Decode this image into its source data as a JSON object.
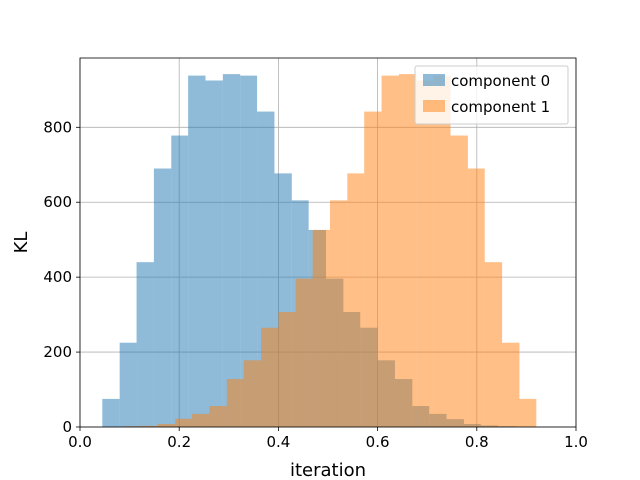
{
  "chart_data": {
    "type": "histogram",
    "title": "",
    "xlabel": "iteration",
    "ylabel": "KL",
    "xlim": [
      0.0,
      1.0
    ],
    "ylim": [
      0,
      985
    ],
    "grid": true,
    "legend_position": "top-right",
    "x_ticks": [
      0.0,
      0.2,
      0.4,
      0.6,
      0.8,
      1.0
    ],
    "x_tick_labels": [
      "0.0",
      "0.2",
      "0.4",
      "0.6",
      "0.8",
      "1.0"
    ],
    "y_ticks": [
      0,
      200,
      400,
      600,
      800
    ],
    "y_tick_labels": [
      "0",
      "200",
      "400",
      "600",
      "800"
    ],
    "series": [
      {
        "name": "component 0",
        "color": "#1f77b4",
        "opacity": 0.5,
        "bins": [
          {
            "x0": 0.045,
            "x1": 0.08,
            "count": 75
          },
          {
            "x0": 0.08,
            "x1": 0.114,
            "count": 225
          },
          {
            "x0": 0.114,
            "x1": 0.149,
            "count": 440
          },
          {
            "x0": 0.149,
            "x1": 0.184,
            "count": 690
          },
          {
            "x0": 0.184,
            "x1": 0.218,
            "count": 778
          },
          {
            "x0": 0.218,
            "x1": 0.253,
            "count": 938
          },
          {
            "x0": 0.253,
            "x1": 0.288,
            "count": 925
          },
          {
            "x0": 0.288,
            "x1": 0.323,
            "count": 942
          },
          {
            "x0": 0.323,
            "x1": 0.357,
            "count": 938
          },
          {
            "x0": 0.357,
            "x1": 0.392,
            "count": 842
          },
          {
            "x0": 0.392,
            "x1": 0.427,
            "count": 677
          },
          {
            "x0": 0.427,
            "x1": 0.461,
            "count": 605
          },
          {
            "x0": 0.461,
            "x1": 0.496,
            "count": 526
          },
          {
            "x0": 0.496,
            "x1": 0.531,
            "count": 396
          },
          {
            "x0": 0.531,
            "x1": 0.565,
            "count": 307
          },
          {
            "x0": 0.565,
            "x1": 0.6,
            "count": 265
          },
          {
            "x0": 0.6,
            "x1": 0.635,
            "count": 178
          },
          {
            "x0": 0.635,
            "x1": 0.67,
            "count": 128
          },
          {
            "x0": 0.67,
            "x1": 0.704,
            "count": 56
          },
          {
            "x0": 0.704,
            "x1": 0.739,
            "count": 35
          },
          {
            "x0": 0.739,
            "x1": 0.774,
            "count": 21
          },
          {
            "x0": 0.774,
            "x1": 0.808,
            "count": 8
          },
          {
            "x0": 0.808,
            "x1": 0.843,
            "count": 4
          },
          {
            "x0": 0.843,
            "x1": 0.878,
            "count": 2
          },
          {
            "x0": 0.878,
            "x1": 0.912,
            "count": 0
          },
          {
            "x0": 0.912,
            "x1": 0.947,
            "count": 0
          }
        ]
      },
      {
        "name": "component 1",
        "color": "#ff7f0e",
        "opacity": 0.5,
        "bins": [
          {
            "x0": 0.053,
            "x1": 0.088,
            "count": 0
          },
          {
            "x0": 0.088,
            "x1": 0.122,
            "count": 2
          },
          {
            "x0": 0.122,
            "x1": 0.157,
            "count": 3
          },
          {
            "x0": 0.157,
            "x1": 0.192,
            "count": 8
          },
          {
            "x0": 0.192,
            "x1": 0.226,
            "count": 22
          },
          {
            "x0": 0.226,
            "x1": 0.261,
            "count": 35
          },
          {
            "x0": 0.261,
            "x1": 0.296,
            "count": 56
          },
          {
            "x0": 0.296,
            "x1": 0.33,
            "count": 128
          },
          {
            "x0": 0.33,
            "x1": 0.365,
            "count": 178
          },
          {
            "x0": 0.365,
            "x1": 0.4,
            "count": 265
          },
          {
            "x0": 0.4,
            "x1": 0.435,
            "count": 307
          },
          {
            "x0": 0.435,
            "x1": 0.469,
            "count": 396
          },
          {
            "x0": 0.469,
            "x1": 0.504,
            "count": 526
          },
          {
            "x0": 0.504,
            "x1": 0.539,
            "count": 605
          },
          {
            "x0": 0.539,
            "x1": 0.573,
            "count": 677
          },
          {
            "x0": 0.573,
            "x1": 0.608,
            "count": 842
          },
          {
            "x0": 0.608,
            "x1": 0.643,
            "count": 938
          },
          {
            "x0": 0.643,
            "x1": 0.678,
            "count": 942
          },
          {
            "x0": 0.678,
            "x1": 0.712,
            "count": 925
          },
          {
            "x0": 0.712,
            "x1": 0.747,
            "count": 938
          },
          {
            "x0": 0.747,
            "x1": 0.782,
            "count": 778
          },
          {
            "x0": 0.782,
            "x1": 0.816,
            "count": 690
          },
          {
            "x0": 0.816,
            "x1": 0.851,
            "count": 440
          },
          {
            "x0": 0.851,
            "x1": 0.886,
            "count": 225
          },
          {
            "x0": 0.886,
            "x1": 0.92,
            "count": 75
          },
          {
            "x0": 0.92,
            "x1": 0.955,
            "count": 0
          }
        ]
      }
    ]
  }
}
